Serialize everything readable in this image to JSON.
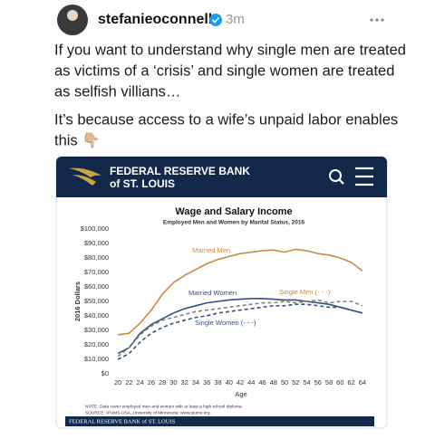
{
  "header": {
    "username": "stefanieoconnell",
    "time": "3m"
  },
  "post": {
    "paragraphs": [
      [
        "If you want to understand why single men are treated",
        "as victims of a ‘crisis’ and single women are treated",
        "as selfish villians…"
      ],
      [
        "It’s because access to a wife’s unpaid labor enables",
        "this 👇🏼"
      ]
    ]
  },
  "image": {
    "brand": [
      "FEDERAL RESERVE BANK",
      "of ST. LOUIS"
    ],
    "notes": [
      "NOTE: Data cover employed men and women with at least a high school diploma.",
      "SOURCE: IPUMS-USA, University of Minnesota; www.ipums.org."
    ],
    "footer": "FEDERAL RESERVE BANK of ST. LOUIS"
  },
  "chart_data": {
    "type": "line",
    "title": "Wage and Salary Income",
    "subtitle": "Employed Men and Women by Marital Status, 2016",
    "y_label": "2016 Dollars",
    "x_label": "Age",
    "x": [
      20,
      22,
      24,
      26,
      28,
      30,
      32,
      34,
      36,
      38,
      40,
      42,
      44,
      46,
      48,
      50,
      52,
      54,
      56,
      58,
      60,
      62,
      64
    ],
    "series": [
      {
        "name": "Married Men",
        "color": "#c98a45",
        "label_color": "#c98a45",
        "dash": false,
        "values": [
          27000,
          28000,
          35000,
          44000,
          55000,
          63000,
          68000,
          72000,
          76000,
          79000,
          81000,
          83000,
          84000,
          85000,
          85500,
          84000,
          86000,
          85000,
          83000,
          82000,
          80000,
          77000,
          71000
        ]
      },
      {
        "name": "Married Women",
        "color": "#33507e",
        "label_color": "#33507e",
        "dash": false,
        "values": [
          14000,
          18000,
          28000,
          34000,
          38000,
          42000,
          45000,
          47000,
          49000,
          50000,
          51000,
          51500,
          52000,
          52000,
          51500,
          51000,
          51000,
          50000,
          49000,
          48000,
          46000,
          44000,
          42000
        ]
      },
      {
        "name": "Single Men (- - -)",
        "color": "#8a8074",
        "label_color": "#c98a45",
        "dash": true,
        "values": [
          12000,
          18000,
          27000,
          33000,
          37000,
          39000,
          41000,
          43000,
          44000,
          45000,
          46000,
          47000,
          48000,
          49000,
          49000,
          50000,
          49000,
          50000,
          51000,
          49000,
          50000,
          50000,
          47000
        ]
      },
      {
        "name": "Single Women (- - -)",
        "color": "#33507e",
        "label_color": "#33507e",
        "dash": true,
        "values": [
          10000,
          14000,
          22000,
          28000,
          32000,
          35000,
          37000,
          39000,
          40000,
          42000,
          43000,
          44000,
          45000,
          46000,
          47000,
          47000,
          48000,
          48000,
          47000,
          46000,
          46000,
          44000,
          42000
        ]
      }
    ],
    "xlim": [
      19,
      65
    ],
    "xticks": [
      20,
      22,
      24,
      26,
      28,
      30,
      32,
      34,
      36,
      38,
      40,
      42,
      44,
      46,
      48,
      50,
      52,
      54,
      56,
      58,
      60,
      62,
      64
    ],
    "ylim": [
      0,
      100000
    ],
    "yticks": [
      {
        "value": 0,
        "label": "$0"
      },
      {
        "value": 10000,
        "label": "$10,000"
      },
      {
        "value": 20000,
        "label": "$20,000"
      },
      {
        "value": 30000,
        "label": "$30,000"
      },
      {
        "value": 40000,
        "label": "$40,000"
      },
      {
        "value": 50000,
        "label": "$50,000"
      },
      {
        "value": 60000,
        "label": "$60,000"
      },
      {
        "value": 70000,
        "label": "$70,000"
      },
      {
        "value": 80000,
        "label": "$80,000"
      },
      {
        "value": 90000,
        "label": "$90,000"
      },
      {
        "value": 100000,
        "label": "$100,000"
      }
    ],
    "grid": false
  }
}
